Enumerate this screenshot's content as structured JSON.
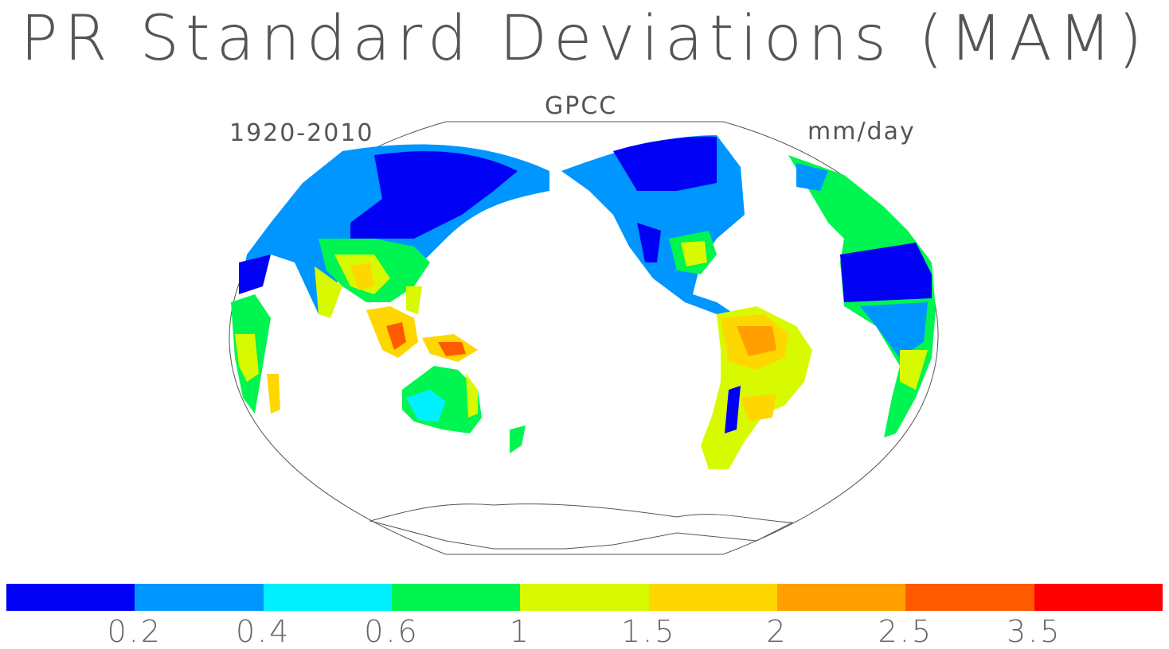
{
  "title": "PR Standard Deviations (MAM)",
  "dataset": "GPCC",
  "period": "1920-2010",
  "units": "mm/day",
  "colorbar": {
    "colors": [
      "#0000f5",
      "#0096ff",
      "#00f0ff",
      "#00f550",
      "#d8fa00",
      "#ffd700",
      "#ffa000",
      "#ff5a00",
      "#ff0000"
    ],
    "tick_labels": [
      "0.2",
      "0.4",
      "0.6",
      "1",
      "1.5",
      "2",
      "2.5",
      "3.5"
    ]
  }
}
